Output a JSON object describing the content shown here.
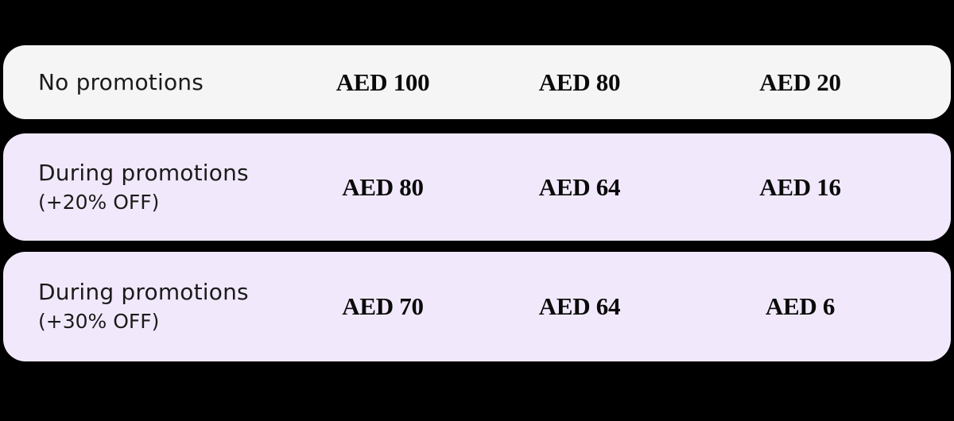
{
  "colors": {
    "background": "#000000",
    "row_default_bg": "#f5f5f6",
    "row_promo_bg": "#f1e9fb",
    "label_text": "#1b1b1b",
    "value_text": "#0a0a0a"
  },
  "chart_data": {
    "type": "table",
    "currency": "AED",
    "rows": [
      {
        "label": "No promotions",
        "sublabel": "",
        "values": [
          "AED 100",
          "AED 80",
          "AED 20"
        ]
      },
      {
        "label": "During promotions",
        "sublabel": "(+20% OFF)",
        "values": [
          "AED 80",
          "AED 64",
          "AED 16"
        ]
      },
      {
        "label": "During promotions",
        "sublabel": "(+30% OFF)",
        "values": [
          "AED 70",
          "AED 64",
          "AED 6"
        ]
      }
    ],
    "numeric_values": [
      [
        100,
        80,
        20
      ],
      [
        80,
        64,
        16
      ],
      [
        70,
        64,
        6
      ]
    ]
  }
}
